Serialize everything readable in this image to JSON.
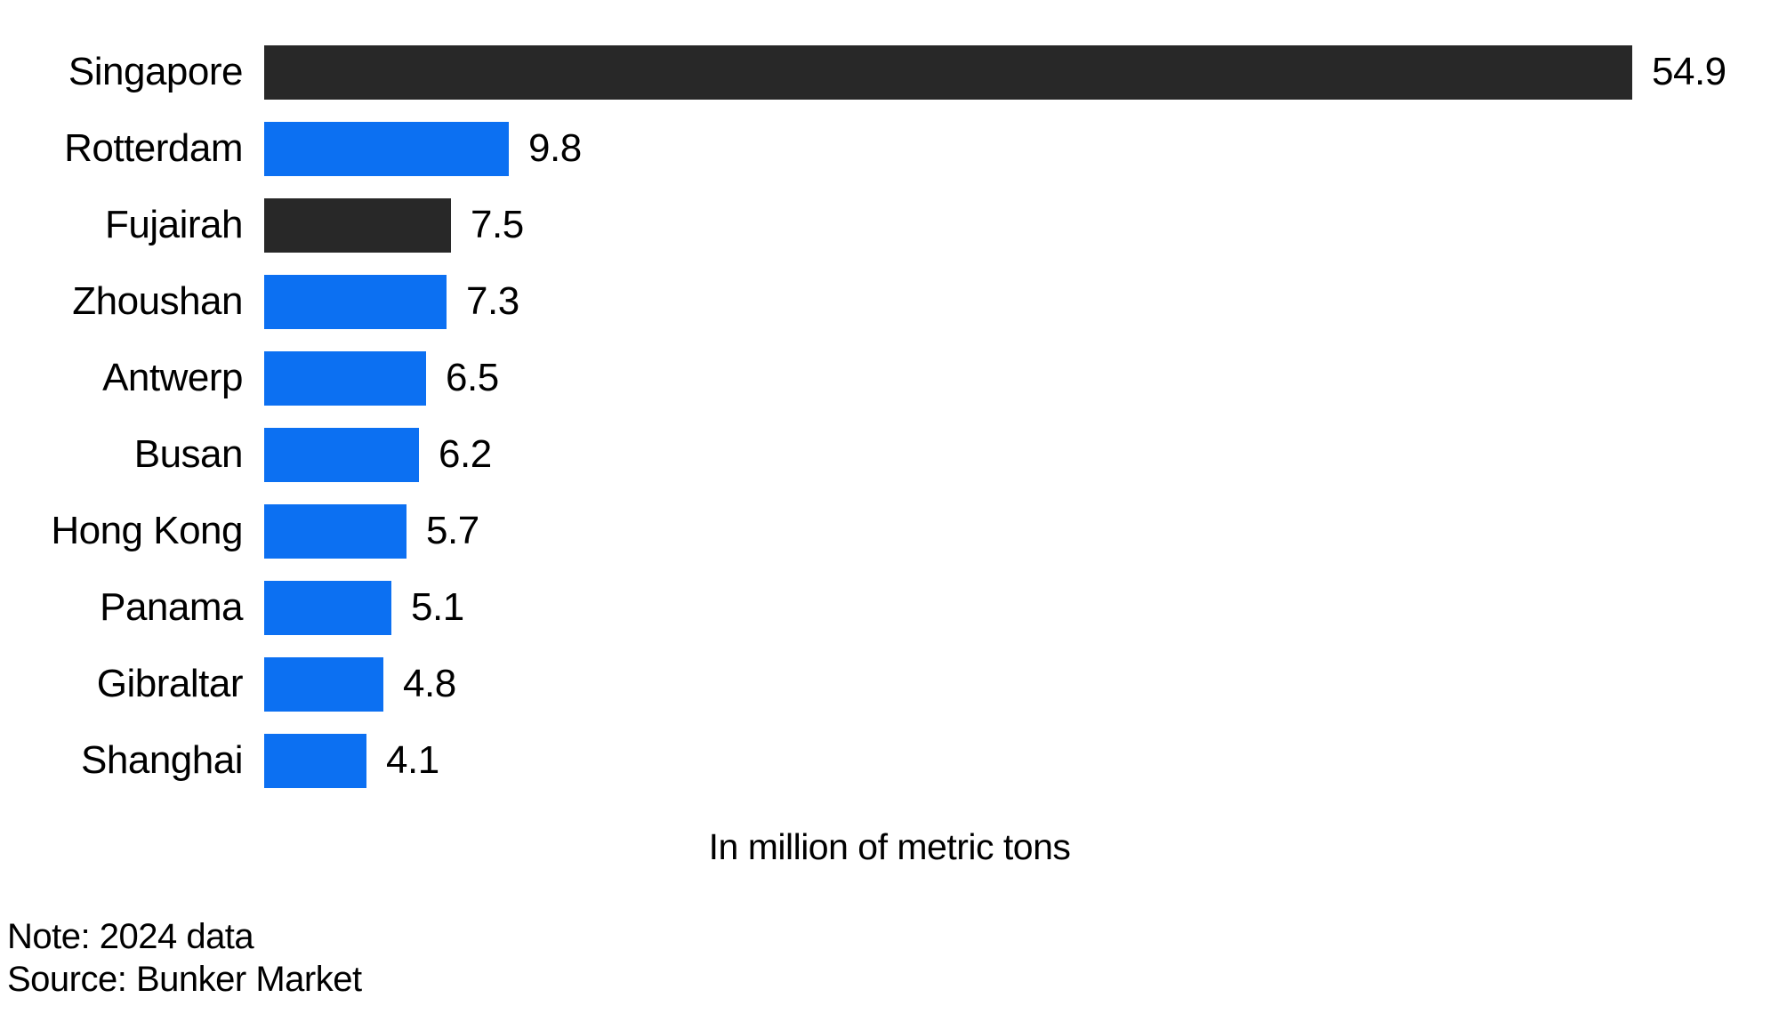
{
  "chart_data": {
    "type": "bar",
    "orientation": "horizontal",
    "categories": [
      "Singapore",
      "Rotterdam",
      "Fujairah",
      "Zhoushan",
      "Antwerp",
      "Busan",
      "Hong Kong",
      "Panama",
      "Gibraltar",
      "Shanghai"
    ],
    "values": [
      54.9,
      9.8,
      7.5,
      7.3,
      6.5,
      6.2,
      5.7,
      5.1,
      4.8,
      4.1
    ],
    "value_labels": [
      "54.9",
      "9.8",
      "7.5",
      "7.3",
      "6.5",
      "6.2",
      "5.7",
      "5.1",
      "4.8",
      "4.1"
    ],
    "bar_styles": [
      "dark",
      "blue",
      "dark",
      "blue",
      "blue",
      "blue",
      "blue",
      "blue",
      "blue",
      "blue"
    ],
    "palette": {
      "dark": "#282828",
      "blue": "#0c70f2"
    },
    "title": "",
    "xlabel": "In million of metric tons",
    "ylabel": "",
    "xlim": [
      0,
      54.9
    ],
    "grid": false,
    "legend": false,
    "note": "Note: 2024 data",
    "source": "Source: Bunker Market"
  }
}
